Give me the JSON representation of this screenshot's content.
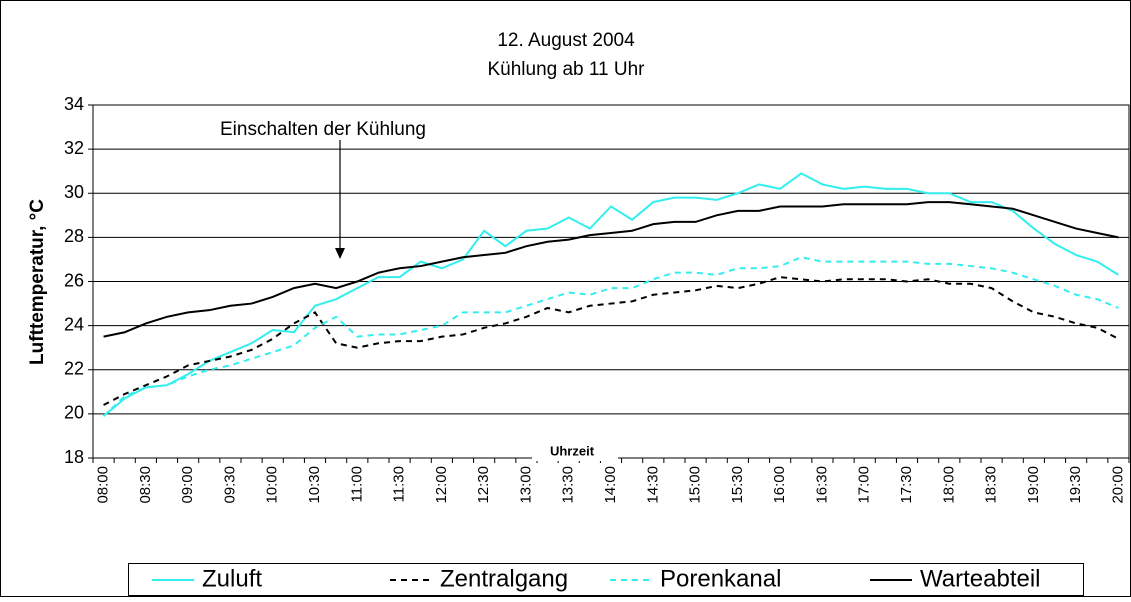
{
  "chart_data": {
    "type": "line",
    "title": "12. August 2004",
    "subtitle": "Kühlung ab 11 Uhr",
    "annotation": "Einschalten der Kühlung",
    "xlabel": "Uhrzeit",
    "ylabel": "Lufttemperatur, °C",
    "categories": [
      "08:00",
      null,
      "08:30",
      null,
      "09:00",
      null,
      "09:30",
      null,
      "10:00",
      null,
      "10:30",
      null,
      "11:00",
      null,
      "11:30",
      null,
      "12:00",
      null,
      "12:30",
      null,
      "13:00",
      null,
      "13:30",
      null,
      "14:00",
      null,
      "14:30",
      null,
      "15:00",
      null,
      "15:30",
      null,
      "16:00",
      null,
      "16:30",
      null,
      "17:00",
      null,
      "17:30",
      null,
      "18:00",
      null,
      "18:30",
      null,
      "19:00",
      null,
      "19:30",
      null,
      "20:00"
    ],
    "series": [
      {
        "name": "Zuluft",
        "color": "#33eeee",
        "style": "solid",
        "values": [
          19.9,
          20.7,
          21.2,
          21.3,
          21.8,
          22.4,
          22.8,
          23.2,
          23.8,
          23.7,
          24.9,
          25.2,
          25.7,
          26.2,
          26.2,
          26.9,
          26.6,
          27.0,
          28.3,
          27.6,
          28.3,
          28.4,
          28.9,
          28.4,
          29.4,
          28.8,
          29.6,
          29.8,
          29.8,
          29.7,
          30.0,
          30.4,
          30.2,
          30.9,
          30.4,
          30.2,
          30.3,
          30.2,
          30.2,
          30.0,
          30.0,
          29.6,
          29.6,
          29.2,
          28.4,
          27.7,
          27.2,
          26.9,
          26.3
        ]
      },
      {
        "name": "Zentralgang",
        "color": "#000000",
        "style": "dashed",
        "values": [
          20.4,
          20.9,
          21.3,
          21.7,
          22.2,
          22.4,
          22.6,
          22.9,
          23.4,
          24.1,
          24.6,
          23.2,
          23.0,
          23.2,
          23.3,
          23.3,
          23.5,
          23.6,
          23.9,
          24.1,
          24.4,
          24.8,
          24.6,
          24.9,
          25.0,
          25.1,
          25.4,
          25.5,
          25.6,
          25.8,
          25.7,
          25.9,
          26.2,
          26.1,
          26.0,
          26.1,
          26.1,
          26.1,
          26.0,
          26.1,
          25.9,
          25.9,
          25.7,
          25.1,
          24.6,
          24.4,
          24.1,
          23.9,
          23.4
        ]
      },
      {
        "name": "Porenkanal",
        "color": "#33eeee",
        "style": "dashed",
        "values": [
          19.9,
          20.8,
          21.2,
          21.3,
          21.7,
          22.0,
          22.2,
          22.5,
          22.8,
          23.1,
          23.9,
          24.4,
          23.5,
          23.6,
          23.6,
          23.8,
          24.0,
          24.6,
          24.6,
          24.6,
          24.9,
          25.2,
          25.5,
          25.4,
          25.7,
          25.7,
          26.1,
          26.4,
          26.4,
          26.3,
          26.6,
          26.6,
          26.7,
          27.1,
          26.9,
          26.9,
          26.9,
          26.9,
          26.9,
          26.8,
          26.8,
          26.7,
          26.6,
          26.4,
          26.1,
          25.8,
          25.4,
          25.2,
          24.8
        ]
      },
      {
        "name": "Warteabteil",
        "color": "#000000",
        "style": "solid",
        "values": [
          23.5,
          23.7,
          24.1,
          24.4,
          24.6,
          24.7,
          24.9,
          25.0,
          25.3,
          25.7,
          25.9,
          25.7,
          26.0,
          26.4,
          26.6,
          26.7,
          26.9,
          27.1,
          27.2,
          27.3,
          27.6,
          27.8,
          27.9,
          28.1,
          28.2,
          28.3,
          28.6,
          28.7,
          28.7,
          29.0,
          29.2,
          29.2,
          29.4,
          29.4,
          29.4,
          29.5,
          29.5,
          29.5,
          29.5,
          29.6,
          29.6,
          29.5,
          29.4,
          29.3,
          29.0,
          28.7,
          28.4,
          28.2,
          28.0
        ]
      }
    ],
    "ylim": [
      18,
      34
    ],
    "yticks": [
      18,
      20,
      22,
      24,
      26,
      28,
      30,
      32,
      34
    ],
    "grid": true,
    "legend": "bottom"
  }
}
